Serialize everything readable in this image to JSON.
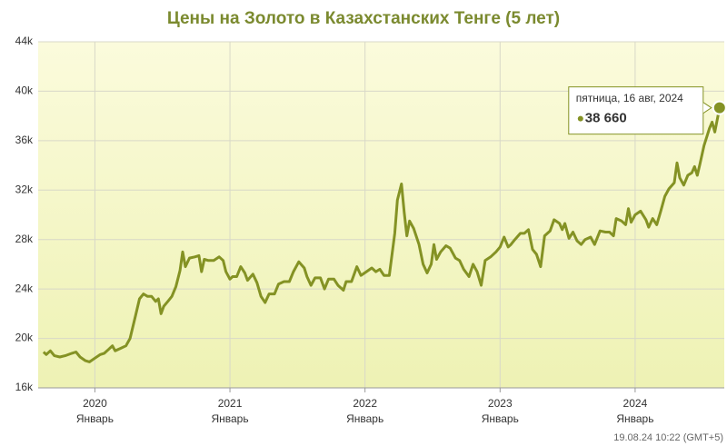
{
  "chart_data": {
    "type": "line",
    "title": "Цены на Золото в Казахстанских Тенге (5 лет)",
    "x": [
      2019.62,
      2019.64,
      2019.67,
      2019.7,
      2019.74,
      2019.78,
      2019.83,
      2019.86,
      2019.89,
      2019.93,
      2019.96,
      2020.0,
      2020.04,
      2020.07,
      2020.1,
      2020.13,
      2020.15,
      2020.19,
      2020.23,
      2020.26,
      2020.3,
      2020.33,
      2020.36,
      2020.39,
      2020.42,
      2020.45,
      2020.47,
      2020.49,
      2020.51,
      2020.54,
      2020.57,
      2020.6,
      2020.63,
      2020.65,
      2020.67,
      2020.7,
      2020.74,
      2020.77,
      2020.79,
      2020.81,
      2020.84,
      2020.88,
      2020.92,
      2020.95,
      2020.97,
      2021.0,
      2021.02,
      2021.05,
      2021.08,
      2021.11,
      2021.13,
      2021.17,
      2021.2,
      2021.23,
      2021.26,
      2021.29,
      2021.33,
      2021.36,
      2021.4,
      2021.44,
      2021.47,
      2021.51,
      2021.55,
      2021.57,
      2021.6,
      2021.63,
      2021.67,
      2021.7,
      2021.73,
      2021.77,
      2021.8,
      2021.84,
      2021.86,
      2021.9,
      2021.94,
      2021.97,
      2022.01,
      2022.05,
      2022.08,
      2022.11,
      2022.14,
      2022.18,
      2022.22,
      2022.24,
      2022.27,
      2022.29,
      2022.31,
      2022.33,
      2022.36,
      2022.4,
      2022.43,
      2022.46,
      2022.49,
      2022.51,
      2022.53,
      2022.56,
      2022.6,
      2022.63,
      2022.67,
      2022.7,
      2022.73,
      2022.77,
      2022.8,
      2022.83,
      2022.86,
      2022.89,
      2022.93,
      2022.97,
      2023.0,
      2023.03,
      2023.06,
      2023.08,
      2023.11,
      2023.15,
      2023.18,
      2023.21,
      2023.24,
      2023.27,
      2023.3,
      2023.33,
      2023.37,
      2023.4,
      2023.44,
      2023.46,
      2023.48,
      2023.51,
      2023.54,
      2023.57,
      2023.6,
      2023.63,
      2023.67,
      2023.7,
      2023.74,
      2023.78,
      2023.81,
      2023.84,
      2023.86,
      2023.9,
      2023.93,
      2023.95,
      2023.97,
      2024.0,
      2024.04,
      2024.08,
      2024.1,
      2024.13,
      2024.16,
      2024.19,
      2024.22,
      2024.25,
      2024.29,
      2024.31,
      2024.33,
      2024.36,
      2024.39,
      2024.42,
      2024.44,
      2024.46,
      2024.48,
      2024.51,
      2024.55,
      2024.57,
      2024.59,
      2024.625
    ],
    "series": [
      {
        "color": "#849224",
        "values": [
          18900,
          18700,
          19000,
          18600,
          18500,
          18600,
          18800,
          18900,
          18500,
          18200,
          18100,
          18400,
          18700,
          18800,
          19100,
          19400,
          19000,
          19200,
          19400,
          20000,
          21800,
          23200,
          23600,
          23400,
          23400,
          23000,
          23200,
          22000,
          22600,
          23000,
          23400,
          24200,
          25500,
          27000,
          25800,
          26500,
          26600,
          26700,
          25400,
          26400,
          26300,
          26300,
          26600,
          26300,
          25400,
          24800,
          25000,
          25000,
          25800,
          25300,
          24700,
          25200,
          24500,
          23400,
          22900,
          23600,
          23600,
          24400,
          24600,
          24600,
          25400,
          26200,
          25700,
          25000,
          24300,
          24900,
          24900,
          24000,
          24800,
          24800,
          24300,
          23900,
          24600,
          24600,
          25800,
          25100,
          25400,
          25700,
          25400,
          25600,
          25100,
          25100,
          28500,
          31200,
          32500,
          30200,
          28300,
          29500,
          28900,
          27600,
          26000,
          25300,
          26000,
          27600,
          26400,
          27000,
          27500,
          27300,
          26500,
          26300,
          25600,
          25000,
          26000,
          25400,
          24300,
          26300,
          26600,
          27000,
          27400,
          28200,
          27400,
          27600,
          28000,
          28500,
          28500,
          28800,
          27200,
          26800,
          25800,
          28300,
          28700,
          29600,
          29300,
          28800,
          29300,
          28100,
          28600,
          27900,
          27600,
          28000,
          28200,
          27600,
          28700,
          28600,
          28600,
          28300,
          29700,
          29500,
          29200,
          30500,
          29400,
          30000,
          30300,
          29600,
          29000,
          29700,
          29200,
          30300,
          31500,
          32100,
          32600,
          34200,
          33000,
          32400,
          33200,
          33400,
          33900,
          33200,
          34100,
          35600,
          37000,
          37500,
          36700,
          38660
        ]
      }
    ],
    "xlim": [
      2019.58,
      2024.66
    ],
    "xticks": [
      2020,
      2021,
      2022,
      2023,
      2024
    ],
    "xtick_sublabel": "Январь",
    "ylim": [
      16000,
      44000
    ],
    "yticks": [
      {
        "value": 16000,
        "label": "16k"
      },
      {
        "value": 20000,
        "label": "20k"
      },
      {
        "value": 24000,
        "label": "24k"
      },
      {
        "value": 28000,
        "label": "28k"
      },
      {
        "value": 32000,
        "label": "32k"
      },
      {
        "value": 36000,
        "label": "36k"
      },
      {
        "value": 40000,
        "label": "40k"
      },
      {
        "value": 44000,
        "label": "44k"
      }
    ],
    "grid": true,
    "tooltip": {
      "date": "пятница, 16 авг, 2024",
      "label": "38 660"
    },
    "timestamp": "19.08.24 10:22 (GMT+5)"
  }
}
